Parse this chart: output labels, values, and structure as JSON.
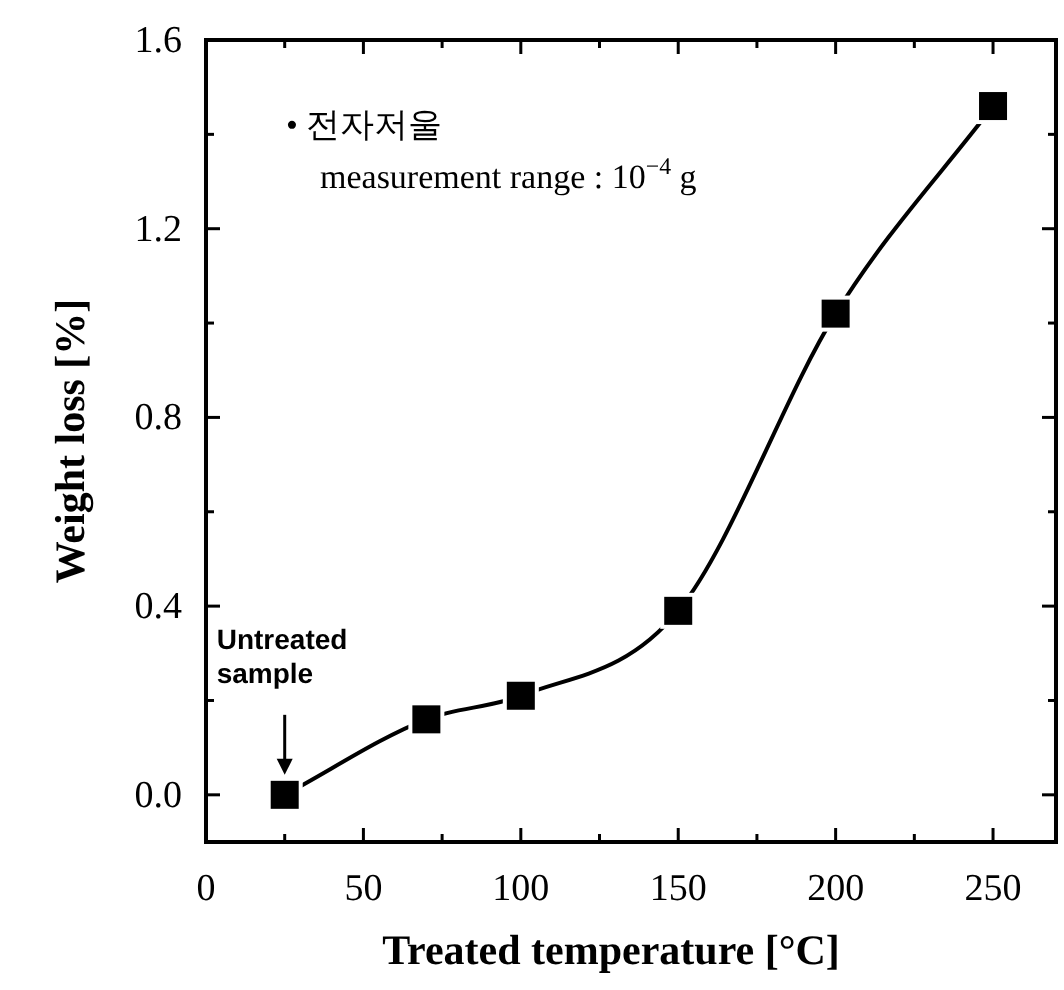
{
  "chart_data": {
    "type": "line",
    "xlabel": "Treated temperature  [°C]",
    "ylabel": "Weight loss [%]",
    "x": [
      25,
      70,
      100,
      150,
      200,
      250
    ],
    "series": [
      {
        "color": "#000000",
        "values": [
          0,
          0.16,
          0.21,
          0.39,
          1.02,
          1.46
        ]
      }
    ],
    "marker": "square",
    "line_style": "solid",
    "grid": false,
    "xlim": [
      0,
      270
    ],
    "ylim": [
      -0.1,
      1.6
    ],
    "xticks": [
      0,
      {
        "value": 25,
        "label": null
      },
      50,
      {
        "value": 75,
        "label": null
      },
      100,
      {
        "value": 125,
        "label": null
      },
      150,
      {
        "value": 175,
        "label": null
      },
      200,
      {
        "value": 225,
        "label": null
      },
      250
    ],
    "yticks": [
      {
        "value": 0,
        "label": "0.0"
      },
      {
        "value": 0.2,
        "label": null
      },
      0.4,
      {
        "value": 0.6,
        "label": null
      },
      0.8,
      {
        "value": 1.0,
        "label": null
      },
      1.2,
      {
        "value": 1.4,
        "label": null
      },
      1.6
    ],
    "annotations": [
      "• 전자저울",
      "measurement range : 10$^{−4}$ g",
      "Untreated sample"
    ]
  }
}
